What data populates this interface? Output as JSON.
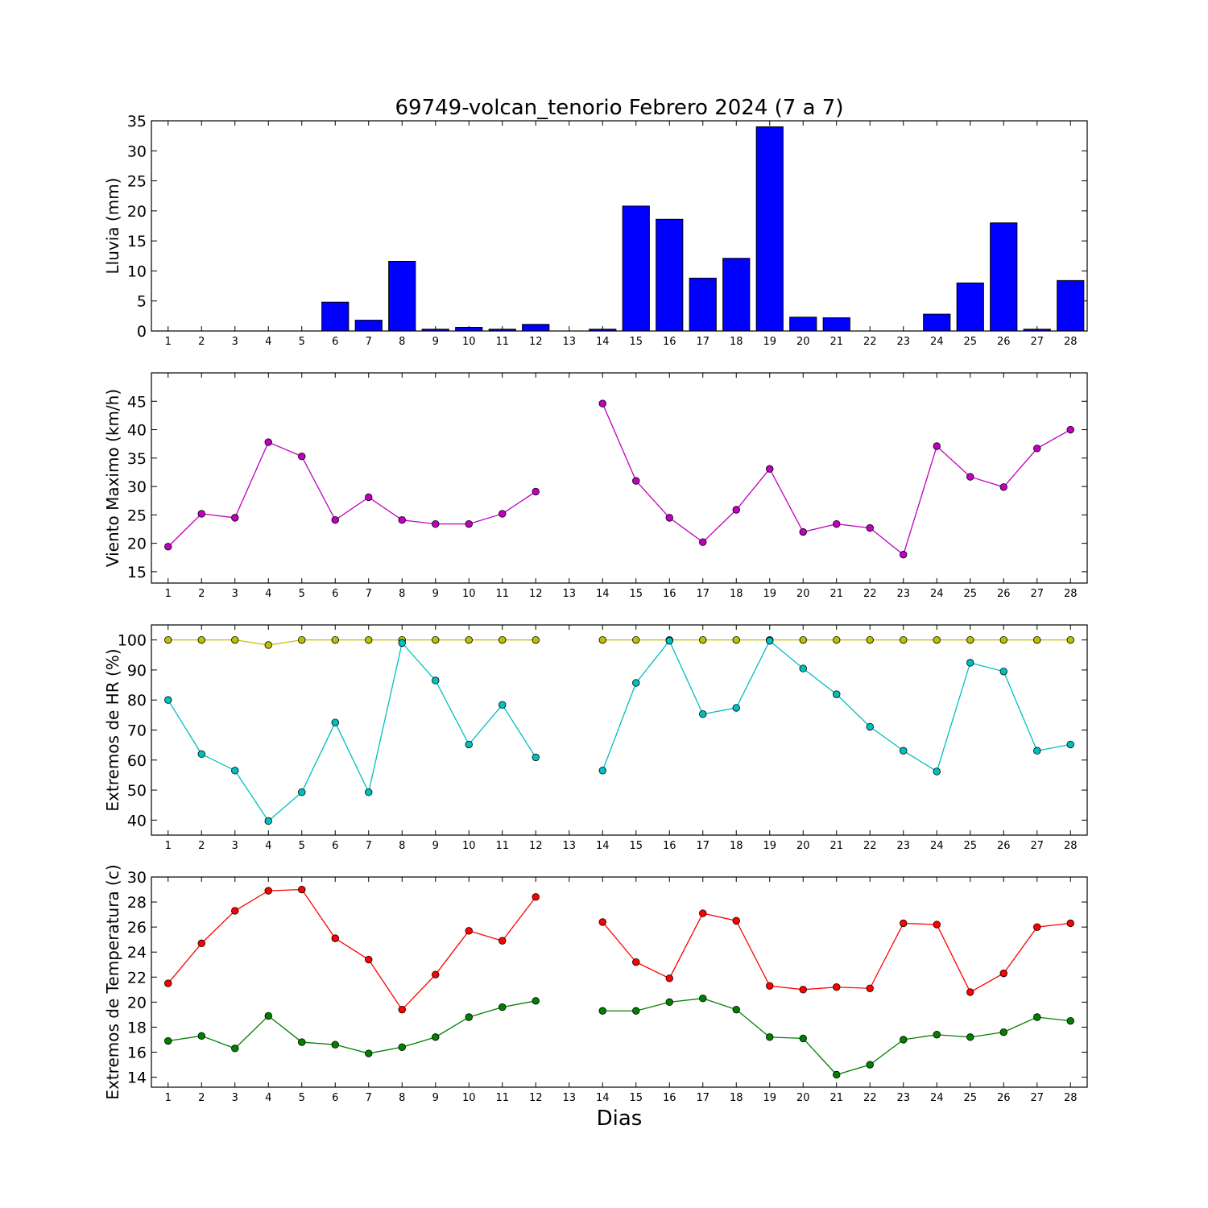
{
  "title": "69749-volcan_tenorio Febrero 2024  (7 a 7)",
  "xlabel": "Dias",
  "x_tick_labels": [
    "1",
    "2",
    "3",
    "4",
    "5",
    "6",
    "7",
    "8",
    "9",
    "10",
    "11",
    "12",
    "13",
    "14",
    "15",
    "16",
    "17",
    "18",
    "19",
    "20",
    "21",
    "22",
    "23",
    "24",
    "25",
    "26",
    "27",
    "28"
  ],
  "colors": {
    "rain": "#0000ff",
    "wind": "#bf00bf",
    "hr_max": "#bfbf00",
    "hr_min": "#00bfbf",
    "temp_max": "#ff0000",
    "temp_min": "#008000"
  },
  "chart_data": [
    {
      "type": "bar",
      "ylabel": "Lluvia (mm)",
      "ylim": [
        0,
        35
      ],
      "yticks": [
        0,
        5,
        10,
        15,
        20,
        25,
        30,
        35
      ],
      "categories": [
        1,
        2,
        3,
        4,
        5,
        6,
        7,
        8,
        9,
        10,
        11,
        12,
        13,
        14,
        15,
        16,
        17,
        18,
        19,
        20,
        21,
        22,
        23,
        24,
        25,
        26,
        27,
        28
      ],
      "values": [
        0,
        0,
        0,
        0,
        0,
        4.8,
        1.8,
        11.6,
        0.3,
        0.6,
        0.3,
        1.1,
        0,
        0.3,
        20.8,
        18.6,
        8.8,
        12.1,
        34.0,
        2.3,
        2.2,
        0,
        0,
        2.8,
        8.0,
        18.0,
        0.3,
        8.4
      ]
    },
    {
      "type": "line",
      "ylabel": "Viento Maximo (km/h)",
      "ylim": [
        13,
        50
      ],
      "yticks": [
        15,
        20,
        25,
        30,
        35,
        40,
        45
      ],
      "x": [
        1,
        2,
        3,
        4,
        5,
        6,
        7,
        8,
        9,
        10,
        11,
        12,
        13,
        14,
        15,
        16,
        17,
        18,
        19,
        20,
        21,
        22,
        23,
        24,
        25,
        26,
        27,
        28
      ],
      "series": [
        {
          "values": [
            19.4,
            25.2,
            24.5,
            37.8,
            35.3,
            24.1,
            28.1,
            24.1,
            23.4,
            23.4,
            25.2,
            29.1,
            null,
            44.6,
            31.0,
            24.5,
            20.2,
            25.9,
            33.1,
            22.0,
            23.4,
            22.7,
            18.0,
            37.1,
            31.7,
            29.9,
            36.7,
            40.0
          ]
        }
      ]
    },
    {
      "type": "line",
      "ylabel": "Extremos de HR (%)",
      "ylim": [
        35,
        105
      ],
      "yticks": [
        40,
        50,
        60,
        70,
        80,
        90,
        100
      ],
      "x": [
        1,
        2,
        3,
        4,
        5,
        6,
        7,
        8,
        9,
        10,
        11,
        12,
        13,
        14,
        15,
        16,
        17,
        18,
        19,
        20,
        21,
        22,
        23,
        24,
        25,
        26,
        27,
        28
      ],
      "series": [
        {
          "values": [
            100,
            100,
            100,
            98.3,
            100,
            100,
            100,
            100,
            100,
            100,
            100,
            100,
            null,
            100,
            100,
            100,
            100,
            100,
            100,
            100,
            100,
            100,
            100,
            100,
            100,
            100,
            100,
            100
          ]
        },
        {
          "values": [
            80,
            62,
            56.5,
            39.7,
            49.3,
            72.5,
            49.3,
            99,
            86.5,
            65.2,
            78.4,
            60.9,
            null,
            56.5,
            85.7,
            99.7,
            75.3,
            77.4,
            99.7,
            90.5,
            81.9,
            71.1,
            63.1,
            56.2,
            92.4,
            89.5,
            63.1,
            65.2
          ]
        }
      ]
    },
    {
      "type": "line",
      "ylabel": "Extremos de Temperatura (c)",
      "ylim": [
        13.2,
        30
      ],
      "yticks": [
        14,
        16,
        18,
        20,
        22,
        24,
        26,
        28,
        30
      ],
      "x": [
        1,
        2,
        3,
        4,
        5,
        6,
        7,
        8,
        9,
        10,
        11,
        12,
        13,
        14,
        15,
        16,
        17,
        18,
        19,
        20,
        21,
        22,
        23,
        24,
        25,
        26,
        27,
        28
      ],
      "series": [
        {
          "values": [
            21.5,
            24.7,
            27.3,
            28.9,
            29.0,
            25.1,
            23.4,
            19.4,
            22.2,
            25.7,
            24.9,
            28.4,
            null,
            26.4,
            23.2,
            21.9,
            27.1,
            26.5,
            21.3,
            21.0,
            21.2,
            21.1,
            26.3,
            26.2,
            20.8,
            22.3,
            26.0,
            26.3
          ]
        },
        {
          "values": [
            16.9,
            17.3,
            16.3,
            18.9,
            16.8,
            16.6,
            15.9,
            16.4,
            17.2,
            18.8,
            19.6,
            20.1,
            null,
            19.3,
            19.3,
            20.0,
            20.3,
            19.4,
            17.2,
            17.1,
            14.2,
            15.0,
            17.0,
            17.4,
            17.2,
            17.6,
            18.8,
            18.5
          ]
        }
      ]
    }
  ]
}
